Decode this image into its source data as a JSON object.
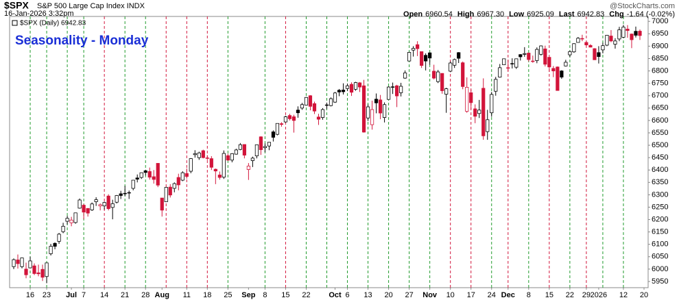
{
  "chart_data": {
    "type": "candlestick",
    "symbol": "$SPX",
    "name": "S&P 500 Large Cap Index INDX",
    "timestamp": "16-Jan-2026 3:32pm",
    "quote": [
      {
        "label": "Open",
        "value": "6960.54"
      },
      {
        "label": "High",
        "value": "6967.30"
      },
      {
        "label": "Low",
        "value": "6925.09"
      },
      {
        "label": "Last",
        "value": "6942.83"
      },
      {
        "label": "Chg",
        "value": "-1.64 (-0.02%)"
      }
    ],
    "watermark": "@StockCharts.com",
    "legend": "$SPX (Daily) 6942.83",
    "annotation": "Seasonality - Monday",
    "up_color": "#000000",
    "down_color": "#d2143a",
    "annotation_color": "#1a2fd6",
    "ylim": [
      5925,
      7020
    ],
    "yticks": [
      5950,
      6000,
      6050,
      6100,
      6150,
      6200,
      6250,
      6300,
      6350,
      6400,
      6450,
      6500,
      6550,
      6600,
      6650,
      6700,
      6750,
      6800,
      6850,
      6900,
      6950,
      7000
    ],
    "xlim": [
      -1,
      154
    ],
    "xticks": [
      {
        "value": 4,
        "label": "16"
      },
      {
        "value": 8,
        "label": "23"
      },
      {
        "value": 14,
        "label": "Jul"
      },
      {
        "value": 17,
        "label": "7"
      },
      {
        "value": 22,
        "label": "14"
      },
      {
        "value": 27,
        "label": "21"
      },
      {
        "value": 32,
        "label": "28"
      },
      {
        "value": 36,
        "label": "Aug"
      },
      {
        "value": 42,
        "label": "11"
      },
      {
        "value": 47,
        "label": "18"
      },
      {
        "value": 52,
        "label": "25"
      },
      {
        "value": 57,
        "label": "Sep"
      },
      {
        "value": 61,
        "label": "8"
      },
      {
        "value": 66,
        "label": "15"
      },
      {
        "value": 71,
        "label": "22"
      },
      {
        "value": 78,
        "label": "Oct"
      },
      {
        "value": 81,
        "label": "6"
      },
      {
        "value": 86,
        "label": "13"
      },
      {
        "value": 91,
        "label": "20"
      },
      {
        "value": 96,
        "label": "27"
      },
      {
        "value": 101,
        "label": "Nov"
      },
      {
        "value": 106,
        "label": "10"
      },
      {
        "value": 111,
        "label": "17"
      },
      {
        "value": 116,
        "label": "24"
      },
      {
        "value": 120,
        "label": "Dec"
      },
      {
        "value": 125,
        "label": "8"
      },
      {
        "value": 130,
        "label": "15"
      },
      {
        "value": 135,
        "label": "22"
      },
      {
        "value": 139,
        "label": "29"
      },
      {
        "value": 142,
        "label": "2026"
      },
      {
        "value": 148,
        "label": "12"
      },
      {
        "value": 153,
        "label": "20"
      }
    ],
    "week_lines": [
      {
        "index": 4,
        "color": "#1f9a2a"
      },
      {
        "index": 8,
        "color": "#1f9a2a"
      },
      {
        "index": 13,
        "color": "#1f9a2a"
      },
      {
        "index": 17,
        "color": "#1f9a2a"
      },
      {
        "index": 22,
        "color": "#d2143a"
      },
      {
        "index": 27,
        "color": "#1f9a2a"
      },
      {
        "index": 32,
        "color": "#1f9a2a"
      },
      {
        "index": 37,
        "color": "#d2143a"
      },
      {
        "index": 42,
        "color": "#d2143a"
      },
      {
        "index": 47,
        "color": "#d2143a"
      },
      {
        "index": 52,
        "color": "#1f9a2a"
      },
      {
        "index": 61,
        "color": "#1f9a2a"
      },
      {
        "index": 66,
        "color": "#d2143a"
      },
      {
        "index": 71,
        "color": "#1f9a2a"
      },
      {
        "index": 76,
        "color": "#1f9a2a"
      },
      {
        "index": 81,
        "color": "#1f9a2a"
      },
      {
        "index": 86,
        "color": "#1f9a2a"
      },
      {
        "index": 91,
        "color": "#1f9a2a"
      },
      {
        "index": 96,
        "color": "#1f9a2a"
      },
      {
        "index": 101,
        "color": "#1f9a2a"
      },
      {
        "index": 106,
        "color": "#d2143a"
      },
      {
        "index": 111,
        "color": "#d2143a"
      },
      {
        "index": 116,
        "color": "#1f9a2a"
      },
      {
        "index": 120,
        "color": "#d2143a"
      },
      {
        "index": 125,
        "color": "#1f9a2a"
      },
      {
        "index": 130,
        "color": "#d2143a"
      },
      {
        "index": 135,
        "color": "#1f9a2a"
      },
      {
        "index": 139,
        "color": "#d2143a"
      },
      {
        "index": 143,
        "color": "#1f9a2a"
      },
      {
        "index": 148,
        "color": "#1f9a2a"
      }
    ],
    "ohlc": [
      [
        6010,
        6043,
        6000,
        6038
      ],
      [
        6037,
        6059,
        6002,
        6022
      ],
      [
        6010,
        6046,
        6003,
        6045
      ],
      [
        6000,
        6026,
        5963,
        5977
      ],
      [
        6005,
        6050,
        6004,
        6033
      ],
      [
        6013,
        6023,
        5976,
        5982
      ],
      [
        5985,
        6018,
        5971,
        5981
      ],
      [
        5999,
        6018,
        5952,
        5967
      ],
      [
        5970,
        6025,
        5943,
        6025
      ],
      [
        6062,
        6102,
        6055,
        6092
      ],
      [
        6104,
        6108,
        6080,
        6092
      ],
      [
        6112,
        6146,
        6102,
        6141
      ],
      [
        6151,
        6187,
        6145,
        6173
      ],
      [
        6193,
        6215,
        6180,
        6205
      ],
      [
        6187,
        6211,
        6173,
        6198
      ],
      [
        6188,
        6227,
        6183,
        6227
      ],
      [
        6246,
        6285,
        6244,
        6279
      ],
      [
        6258,
        6263,
        6201,
        6230
      ],
      [
        6245,
        6246,
        6212,
        6226
      ],
      [
        6239,
        6269,
        6235,
        6263
      ],
      [
        6272,
        6290,
        6255,
        6280
      ],
      [
        6255,
        6265,
        6237,
        6260
      ],
      [
        6255,
        6272,
        6240,
        6269
      ],
      [
        6295,
        6302,
        6237,
        6244
      ],
      [
        6249,
        6280,
        6201,
        6264
      ],
      [
        6270,
        6299,
        6265,
        6297
      ],
      [
        6304,
        6316,
        6283,
        6297
      ],
      [
        6304,
        6336,
        6295,
        6306
      ],
      [
        6307,
        6317,
        6283,
        6309
      ],
      [
        6326,
        6360,
        6318,
        6359
      ],
      [
        6368,
        6382,
        6350,
        6363
      ],
      [
        6370,
        6390,
        6364,
        6389
      ],
      [
        6397,
        6401,
        6378,
        6390
      ],
      [
        6394,
        6410,
        6361,
        6371
      ],
      [
        6373,
        6400,
        6345,
        6362
      ],
      [
        6427,
        6427,
        6331,
        6339
      ],
      [
        6287,
        6287,
        6212,
        6238
      ],
      [
        6272,
        6331,
        6271,
        6330
      ],
      [
        6331,
        6343,
        6289,
        6299
      ],
      [
        6326,
        6350,
        6310,
        6345
      ],
      [
        6370,
        6385,
        6318,
        6340
      ],
      [
        6359,
        6395,
        6355,
        6389
      ],
      [
        6386,
        6406,
        6365,
        6374
      ],
      [
        6395,
        6448,
        6387,
        6446
      ],
      [
        6462,
        6480,
        6450,
        6466
      ],
      [
        6450,
        6474,
        6441,
        6469
      ],
      [
        6478,
        6482,
        6447,
        6450
      ],
      [
        6447,
        6460,
        6440,
        6449
      ],
      [
        6446,
        6456,
        6400,
        6411
      ],
      [
        6403,
        6406,
        6343,
        6396
      ],
      [
        6380,
        6394,
        6361,
        6370
      ],
      [
        6371,
        6479,
        6364,
        6467
      ],
      [
        6458,
        6466,
        6437,
        6440
      ],
      [
        6440,
        6468,
        6431,
        6466
      ],
      [
        6464,
        6486,
        6462,
        6481
      ],
      [
        6483,
        6509,
        6480,
        6502
      ],
      [
        6503,
        6504,
        6447,
        6460
      ],
      [
        6402,
        6428,
        6360,
        6416
      ],
      [
        6438,
        6454,
        6412,
        6448
      ],
      [
        6457,
        6502,
        6447,
        6502
      ],
      [
        6534,
        6536,
        6461,
        6482
      ],
      [
        6490,
        6507,
        6472,
        6495
      ],
      [
        6497,
        6512,
        6480,
        6512
      ],
      [
        6554,
        6560,
        6515,
        6532
      ],
      [
        6544,
        6588,
        6540,
        6588
      ],
      [
        6587,
        6593,
        6575,
        6584
      ],
      [
        6594,
        6619,
        6591,
        6615
      ],
      [
        6620,
        6627,
        6600,
        6607
      ],
      [
        6615,
        6623,
        6551,
        6600
      ],
      [
        6642,
        6657,
        6611,
        6631
      ],
      [
        6650,
        6671,
        6643,
        6664
      ],
      [
        6662,
        6695,
        6661,
        6693
      ],
      [
        6700,
        6702,
        6641,
        6657
      ],
      [
        6668,
        6676,
        6626,
        6638
      ],
      [
        6614,
        6627,
        6582,
        6605
      ],
      [
        6612,
        6650,
        6603,
        6644
      ],
      [
        6663,
        6672,
        6646,
        6661
      ],
      [
        6660,
        6693,
        6657,
        6688
      ],
      [
        6674,
        6715,
        6671,
        6711
      ],
      [
        6722,
        6727,
        6698,
        6715
      ],
      [
        6723,
        6750,
        6705,
        6716
      ],
      [
        6729,
        6749,
        6719,
        6740
      ],
      [
        6746,
        6754,
        6699,
        6714
      ],
      [
        6726,
        6756,
        6720,
        6753
      ],
      [
        6752,
        6755,
        6715,
        6735
      ],
      [
        6740,
        6764,
        6551,
        6553
      ],
      [
        6610,
        6665,
        6598,
        6655
      ],
      [
        6583,
        6680,
        6563,
        6644
      ],
      [
        6686,
        6709,
        6629,
        6671
      ],
      [
        6683,
        6703,
        6605,
        6630
      ],
      [
        6612,
        6673,
        6592,
        6664
      ],
      [
        6685,
        6738,
        6684,
        6735
      ],
      [
        6736,
        6753,
        6707,
        6735
      ],
      [
        6740,
        6744,
        6654,
        6699
      ],
      [
        6712,
        6752,
        6697,
        6738
      ],
      [
        6771,
        6802,
        6768,
        6792
      ],
      [
        6840,
        6877,
        6839,
        6875
      ],
      [
        6884,
        6900,
        6858,
        6891
      ],
      [
        6906,
        6920,
        6860,
        6890
      ],
      [
        6878,
        6878,
        6812,
        6822
      ],
      [
        6863,
        6871,
        6802,
        6840
      ],
      [
        6873,
        6875,
        6825,
        6852
      ],
      [
        6799,
        6825,
        6766,
        6771
      ],
      [
        6757,
        6804,
        6751,
        6796
      ],
      [
        6790,
        6791,
        6708,
        6720
      ],
      [
        6706,
        6732,
        6631,
        6728
      ],
      [
        6799,
        6838,
        6795,
        6832
      ],
      [
        6823,
        6850,
        6812,
        6846
      ],
      [
        6874,
        6876,
        6832,
        6851
      ],
      [
        6833,
        6838,
        6726,
        6737
      ],
      [
        6637,
        6774,
        6631,
        6734
      ],
      [
        6712,
        6725,
        6645,
        6672
      ],
      [
        6647,
        6665,
        6589,
        6617
      ],
      [
        6628,
        6683,
        6610,
        6642
      ],
      [
        6730,
        6770,
        6522,
        6538
      ],
      [
        6555,
        6643,
        6522,
        6603
      ],
      [
        6631,
        6715,
        6615,
        6705
      ],
      [
        6718,
        6776,
        6700,
        6766
      ],
      [
        6775,
        6828,
        6773,
        6813
      ],
      [
        6825,
        6850,
        6825,
        6849
      ],
      [
        6813,
        6844,
        6799,
        6812
      ],
      [
        6830,
        6851,
        6810,
        6829
      ],
      [
        6815,
        6850,
        6808,
        6849
      ],
      [
        6866,
        6868,
        6842,
        6857
      ],
      [
        6867,
        6896,
        6857,
        6870
      ],
      [
        6872,
        6874,
        6838,
        6846
      ],
      [
        6840,
        6862,
        6833,
        6840
      ],
      [
        6842,
        6895,
        6831,
        6887
      ],
      [
        6867,
        6903,
        6862,
        6901
      ],
      [
        6889,
        6902,
        6818,
        6827
      ],
      [
        6855,
        6855,
        6796,
        6816
      ],
      [
        6810,
        6820,
        6775,
        6800
      ],
      [
        6816,
        6818,
        6720,
        6721
      ],
      [
        6800,
        6803,
        6768,
        6775
      ],
      [
        6820,
        6845,
        6818,
        6835
      ],
      [
        6865,
        6882,
        6856,
        6878
      ],
      [
        6877,
        6912,
        6873,
        6910
      ],
      [
        6915,
        6937,
        6915,
        6932
      ],
      [
        6931,
        6946,
        6920,
        6930
      ],
      [
        6915,
        6922,
        6899,
        6905
      ],
      [
        6903,
        6908,
        6895,
        6896
      ],
      [
        6890,
        6892,
        6845,
        6845
      ],
      [
        6874,
        6900,
        6830,
        6858
      ],
      [
        6885,
        6914,
        6871,
        6902
      ],
      [
        6904,
        6945,
        6900,
        6944
      ],
      [
        6941,
        6965,
        6916,
        6921
      ],
      [
        6908,
        6932,
        6890,
        6921
      ],
      [
        6929,
        6978,
        6920,
        6966
      ],
      [
        6936,
        6986,
        6933,
        6977
      ],
      [
        6969,
        6985,
        6934,
        6963
      ],
      [
        6949,
        6951,
        6892,
        6926
      ],
      [
        6960,
        6979,
        6935,
        6944
      ],
      [
        6960.54,
        6967.3,
        6925.09,
        6942.83
      ]
    ]
  }
}
